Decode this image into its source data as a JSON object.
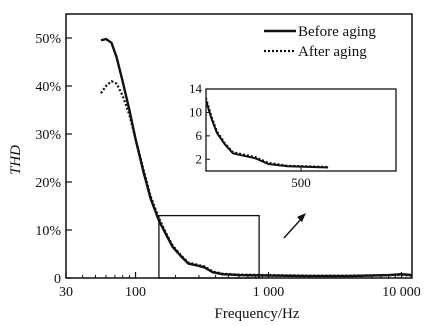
{
  "chart_data": {
    "type": "line",
    "xlabel": "Frequency/Hz",
    "ylabel": "THD",
    "x_scale": "log",
    "xlim": [
      30,
      12000
    ],
    "ylim": [
      0,
      0.55
    ],
    "x_ticks": [
      30,
      100,
      1000,
      10000
    ],
    "x_tick_labels": [
      "30",
      "100",
      "1 000",
      "10 000"
    ],
    "y_ticks": [
      0,
      0.1,
      0.2,
      0.3,
      0.4,
      0.5
    ],
    "y_tick_labels": [
      "0",
      "10%",
      "20%",
      "30%",
      "40%",
      "50%"
    ],
    "legend_position": "top-right",
    "series": [
      {
        "name": "Before aging",
        "style": "solid",
        "points": [
          [
            55,
            0.495
          ],
          [
            60,
            0.498
          ],
          [
            66,
            0.49
          ],
          [
            72,
            0.46
          ],
          [
            80,
            0.41
          ],
          [
            90,
            0.35
          ],
          [
            100,
            0.29
          ],
          [
            115,
            0.22
          ],
          [
            130,
            0.165
          ],
          [
            150,
            0.12
          ],
          [
            170,
            0.09
          ],
          [
            190,
            0.065
          ],
          [
            220,
            0.045
          ],
          [
            250,
            0.03
          ],
          [
            290,
            0.026
          ],
          [
            330,
            0.022
          ],
          [
            380,
            0.012
          ],
          [
            450,
            0.008
          ],
          [
            600,
            0.006
          ],
          [
            1000,
            0.005
          ],
          [
            2000,
            0.004
          ],
          [
            4000,
            0.004
          ],
          [
            8000,
            0.006
          ],
          [
            10000,
            0.008
          ],
          [
            12000,
            0.006
          ]
        ]
      },
      {
        "name": "After aging",
        "style": "dotted",
        "points": [
          [
            55,
            0.385
          ],
          [
            60,
            0.4
          ],
          [
            66,
            0.41
          ],
          [
            72,
            0.405
          ],
          [
            80,
            0.38
          ],
          [
            90,
            0.34
          ],
          [
            100,
            0.29
          ],
          [
            115,
            0.225
          ],
          [
            130,
            0.17
          ],
          [
            150,
            0.125
          ],
          [
            170,
            0.093
          ],
          [
            190,
            0.068
          ],
          [
            220,
            0.047
          ],
          [
            250,
            0.032
          ],
          [
            290,
            0.028
          ],
          [
            330,
            0.024
          ],
          [
            380,
            0.014
          ],
          [
            450,
            0.009
          ],
          [
            600,
            0.007
          ],
          [
            1000,
            0.006
          ],
          [
            2000,
            0.005
          ],
          [
            4000,
            0.005
          ],
          [
            8000,
            0.006
          ],
          [
            10000,
            0.006
          ],
          [
            12000,
            0.005
          ]
        ]
      }
    ],
    "inset": {
      "zoom_xlim": [
        150,
        850
      ],
      "zoom_ylim": [
        0,
        0.13
      ],
      "ylim": [
        0,
        14
      ],
      "y_ticks": [
        2,
        6,
        10,
        14
      ],
      "y_tick_labels": [
        "2",
        "6",
        "10",
        "14"
      ],
      "x_ticks": [
        500
      ],
      "x_tick_labels": [
        "500"
      ]
    }
  }
}
